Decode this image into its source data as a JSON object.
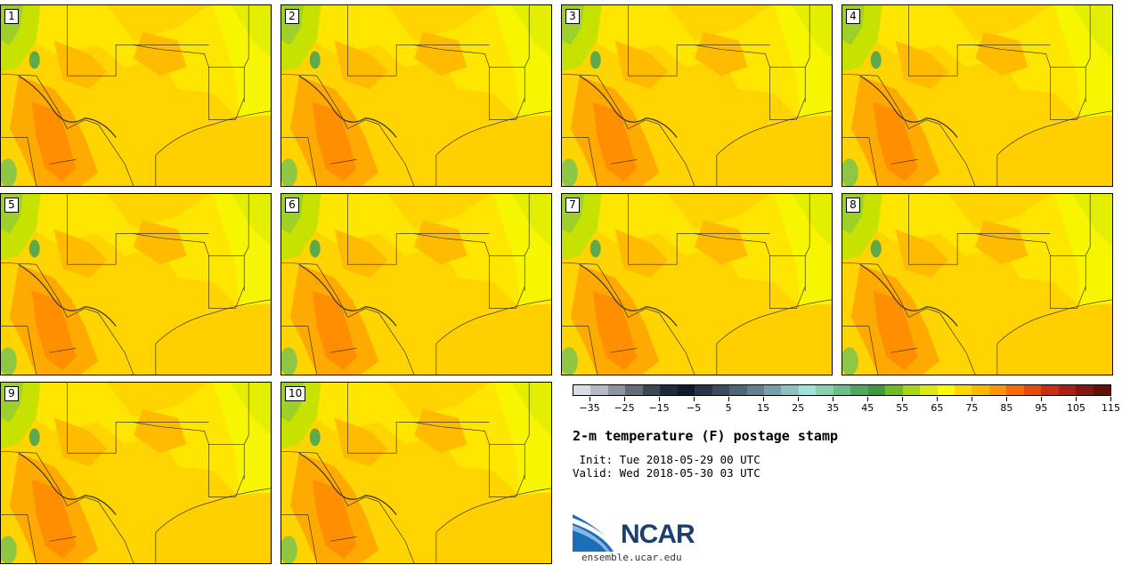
{
  "panels": [
    "1",
    "2",
    "3",
    "4",
    "5",
    "6",
    "7",
    "8",
    "9",
    "10"
  ],
  "colorbar": {
    "colors": [
      "#d9dde6",
      "#b5bac5",
      "#8c93a0",
      "#646c7b",
      "#3d4757",
      "#1f2a3a",
      "#0f1b2b",
      "#253447",
      "#3b4c61",
      "#4f6579",
      "#62808f",
      "#76a0a8",
      "#8cc1c2",
      "#9fe2da",
      "#88d1ae",
      "#6dbd88",
      "#4fa760",
      "#3c9a3e",
      "#6dbb27",
      "#a7d619",
      "#dcea11",
      "#fcfa00",
      "#ffd700",
      "#ffb800",
      "#ff9500",
      "#ff6a00",
      "#e64a0a",
      "#c92e10",
      "#a91f12",
      "#86150f",
      "#641008"
    ],
    "tick_labels": [
      "-35",
      "-25",
      "-15",
      "-5",
      "5",
      "15",
      "25",
      "35",
      "45",
      "55",
      "65",
      "75",
      "85",
      "95",
      "105",
      "115"
    ]
  },
  "title": "2-m temperature (F) postage stamp",
  "init_line": " Init: Tue 2018-05-29 00 UTC",
  "valid_line": "Valid: Wed 2018-05-30 03 UTC",
  "logo": {
    "text": "NCAR",
    "url": "ensemble.ucar.edu"
  }
}
